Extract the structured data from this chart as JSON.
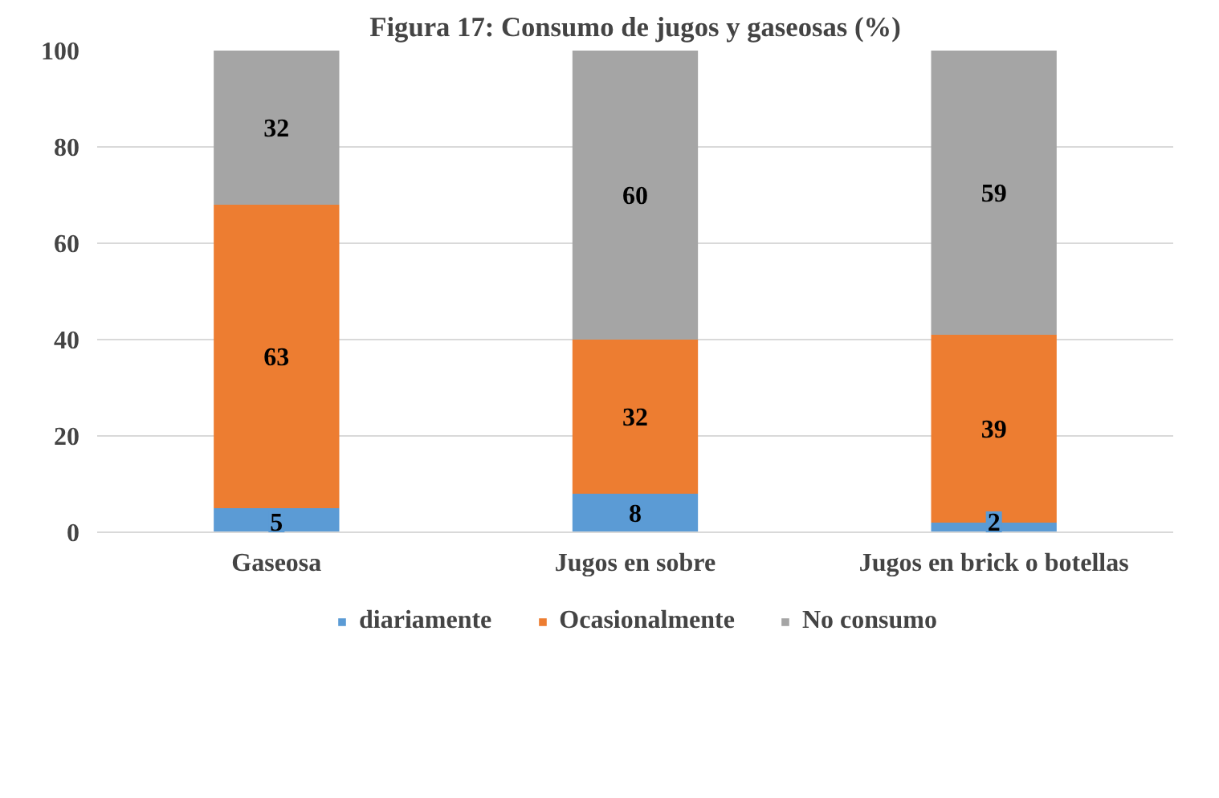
{
  "chart_data": {
    "type": "bar",
    "title": "Figura 17: Consumo de jugos y gaseosas (%)",
    "categories": [
      "Gaseosa",
      "Jugos en sobre",
      "Jugos en brick o botellas"
    ],
    "stacked": true,
    "series": [
      {
        "name": "diariamente",
        "color": "#5b9bd5",
        "values": [
          5,
          8,
          2
        ]
      },
      {
        "name": "Ocasionalmente",
        "color": "#ed7d31",
        "values": [
          63,
          32,
          39
        ]
      },
      {
        "name": "No consumo",
        "color": "#a5a5a5",
        "values": [
          32,
          60,
          59
        ]
      }
    ],
    "ylim": [
      0,
      100
    ],
    "yticks": [
      0,
      20,
      40,
      60,
      80,
      100
    ],
    "grid": "y",
    "legend": "bottom",
    "data_labels": true
  }
}
